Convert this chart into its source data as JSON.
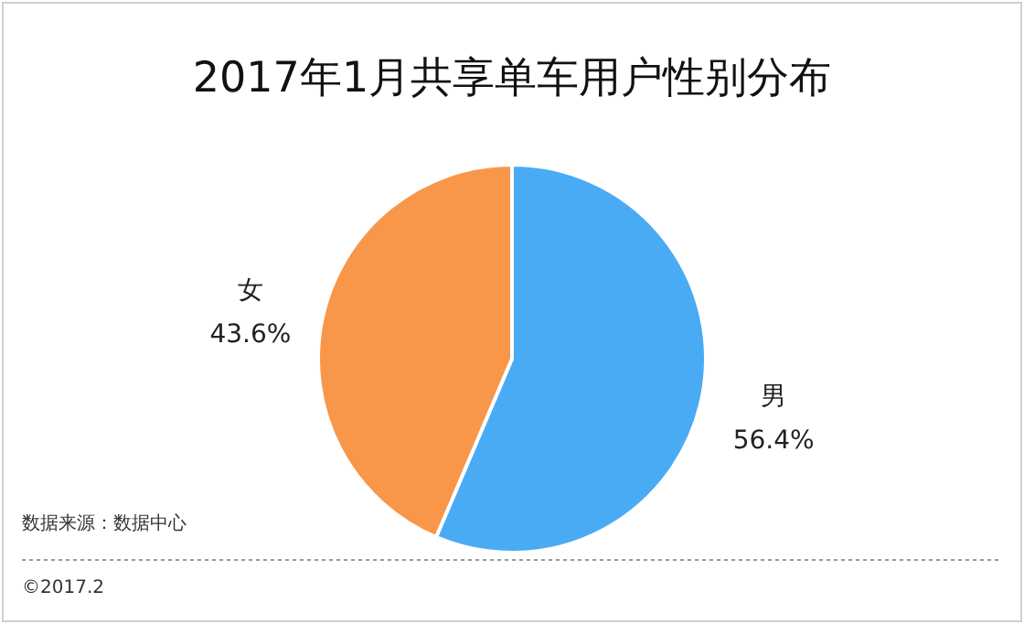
{
  "chart_data": {
    "type": "pie",
    "title": "2017年1月共享单车用户性别分布",
    "categories": [
      "男",
      "女"
    ],
    "values": [
      56.4,
      43.6
    ],
    "value_labels": [
      "56.4%",
      "43.6%"
    ],
    "colors": [
      "#4aabf5",
      "#f8974a"
    ],
    "annotations": [
      "数据来源：数据中心",
      "©2017.2"
    ]
  }
}
